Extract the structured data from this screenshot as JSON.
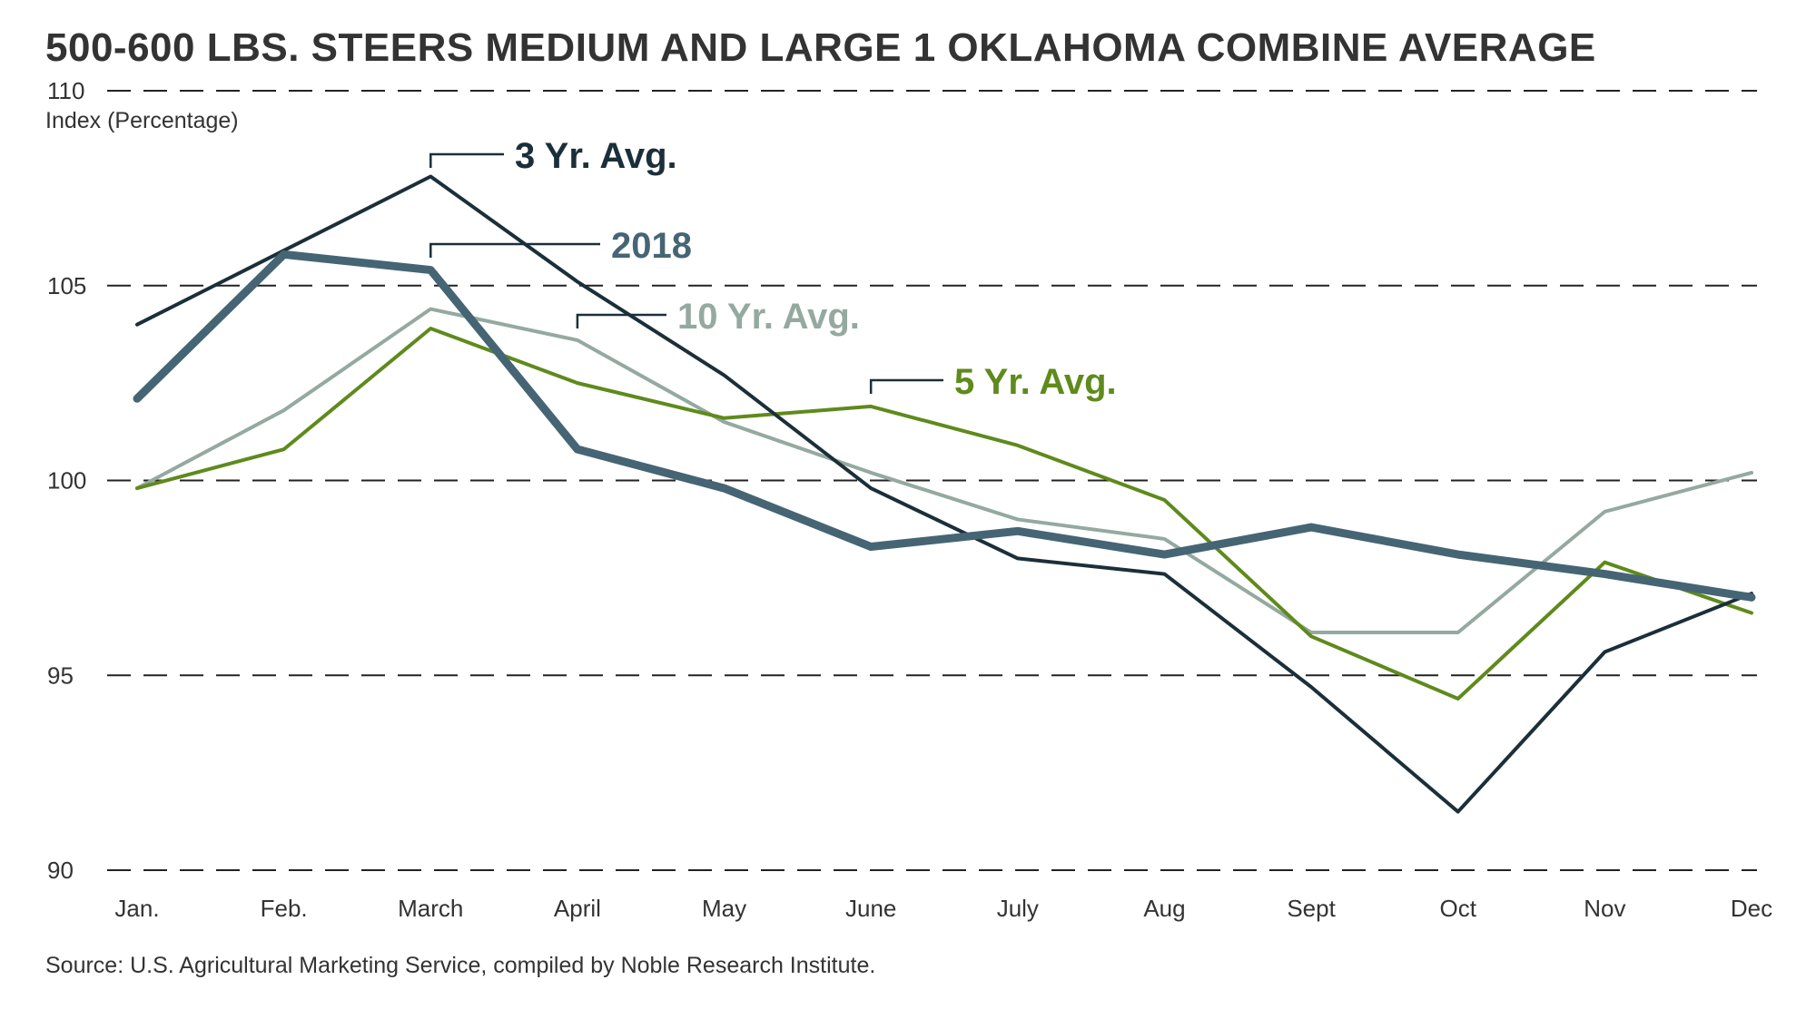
{
  "chart_data": {
    "type": "line",
    "title": "500-600 LBS. STEERS MEDIUM AND LARGE 1 OKLAHOMA COMBINE AVERAGE",
    "ylabel": "Index (Percentage)",
    "xlabel": "",
    "ylim": [
      90,
      110
    ],
    "yticks": [
      90,
      95,
      100,
      105,
      110
    ],
    "grid": true,
    "categories": [
      "Jan.",
      "Feb.",
      "March",
      "April",
      "May",
      "June",
      "July",
      "Aug",
      "Sept",
      "Oct",
      "Nov",
      "Dec"
    ],
    "series": [
      {
        "name": "3 Yr. Avg.",
        "color": "#1b2f3a",
        "values": [
          104.0,
          105.9,
          107.8,
          105.1,
          102.7,
          99.8,
          98.0,
          97.6,
          94.7,
          91.5,
          95.6,
          97.1
        ],
        "label_at": "March"
      },
      {
        "name": "2018",
        "color": "#466574",
        "values": [
          102.1,
          105.8,
          105.4,
          100.8,
          99.8,
          98.3,
          98.7,
          98.1,
          98.8,
          98.1,
          97.6,
          97.0
        ],
        "label_at": "March"
      },
      {
        "name": "10 Yr. Avg.",
        "color": "#94a99f",
        "values": [
          99.8,
          101.8,
          104.4,
          103.6,
          101.5,
          100.2,
          99.0,
          98.5,
          96.1,
          96.1,
          99.2,
          100.2
        ],
        "label_at": "April"
      },
      {
        "name": "5 Yr. Avg.",
        "color": "#5f8a1c",
        "values": [
          99.8,
          100.8,
          103.9,
          102.5,
          101.6,
          101.9,
          100.9,
          99.5,
          96.0,
          94.4,
          97.9,
          96.6
        ],
        "label_at": "June"
      }
    ],
    "source": "Source: U.S. Agricultural Marketing Service, compiled by Noble Research Institute."
  }
}
